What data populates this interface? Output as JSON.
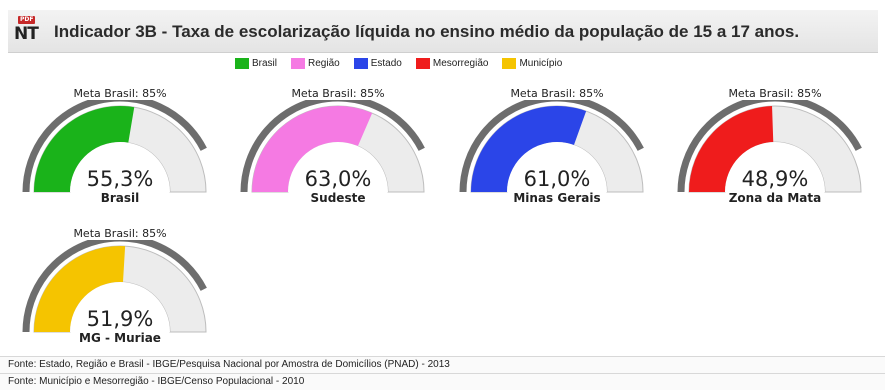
{
  "header": {
    "icon_badge": "PDF",
    "icon_label": "NT",
    "title": "Indicador 3B - Taxa de escolarização líquida no ensino médio da população de 15 a 17 anos."
  },
  "legend": [
    {
      "label": "Brasil",
      "color": "#1ab31a"
    },
    {
      "label": "Região",
      "color": "#f57ae3"
    },
    {
      "label": "Estado",
      "color": "#2b45e8"
    },
    {
      "label": "Mesorregião",
      "color": "#ef1c1c"
    },
    {
      "label": "Município",
      "color": "#f5c400"
    }
  ],
  "chart_data": {
    "type": "gauge",
    "range": [
      0,
      100
    ],
    "target_label": "Meta Brasil: 85%",
    "target": 85,
    "gauges": [
      {
        "region": "Brasil",
        "value": 55.3,
        "display": "55,3%",
        "color": "#1ab31a"
      },
      {
        "region": "Sudeste",
        "value": 63.0,
        "display": "63,0%",
        "color": "#f57ae3"
      },
      {
        "region": "Minas Gerais",
        "value": 61.0,
        "display": "61,0%",
        "color": "#2b45e8"
      },
      {
        "region": "Zona da Mata",
        "value": 48.9,
        "display": "48,9%",
        "color": "#ef1c1c"
      },
      {
        "region": "MG - Muriae",
        "value": 51.9,
        "display": "51,9%",
        "color": "#f5c400"
      }
    ]
  },
  "sources": [
    "Fonte: Estado, Região e Brasil - IBGE/Pesquisa Nacional por Amostra de Domicílios (PNAD) - 2013",
    "Fonte: Município e Mesorregião - IBGE/Censo Populacional - 2010"
  ]
}
